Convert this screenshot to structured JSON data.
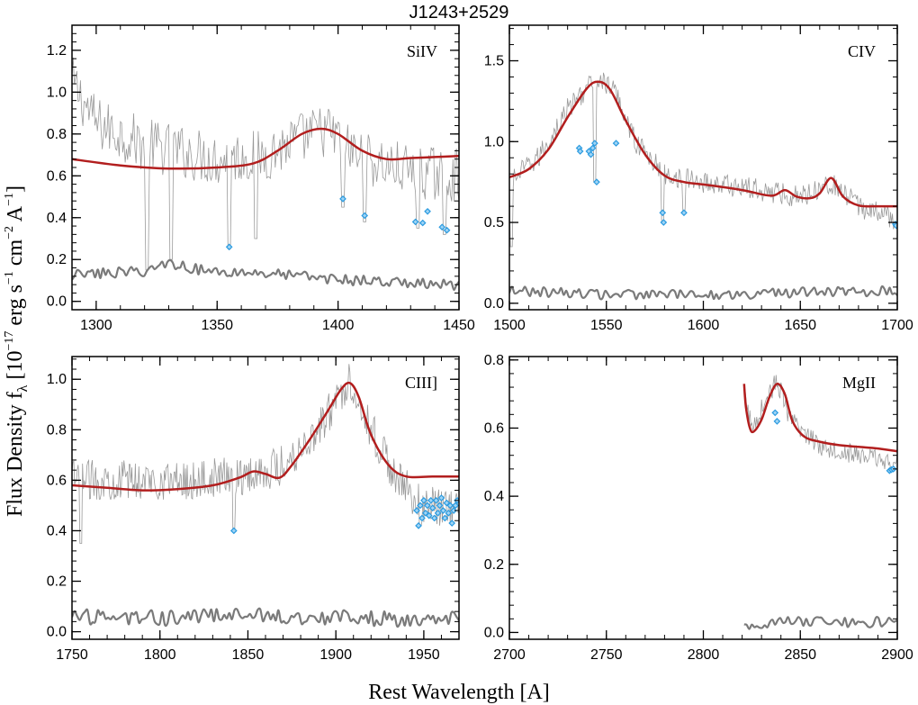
{
  "figure": {
    "title": "J1243+2529",
    "xlabel": "Rest Wavelength [A]",
    "ylabel_main": "Flux Density f",
    "ylabel_sub": "λ",
    "ylabel_units": "[10",
    "ylabel_exp1": "−17",
    "ylabel_units2": " erg s",
    "ylabel_exp2": "−1",
    "ylabel_units3": " cm",
    "ylabel_exp3": "−2",
    "ylabel_units4": " A",
    "ylabel_exp4": "−1",
    "ylabel_units5": "]"
  },
  "colors": {
    "model": "#b21e1e",
    "spectrum": "#9a9a9a",
    "error": "#7a7a7a",
    "masked": "#2b9be0"
  },
  "chart_data": [
    {
      "type": "line",
      "label": "SiIV",
      "xlim": [
        1290,
        1450
      ],
      "ylim": [
        -0.04,
        1.32
      ],
      "xticks": [
        1300,
        1350,
        1400,
        1450
      ],
      "yticks": [
        0.0,
        0.2,
        0.4,
        0.6,
        0.8,
        1.0,
        1.2
      ],
      "ytick_labels": [
        "0.0",
        "0.2",
        "0.4",
        "0.6",
        "0.8",
        "1.0",
        "1.2"
      ],
      "model": {
        "x": [
          1290,
          1310,
          1330,
          1350,
          1365,
          1375,
          1385,
          1393,
          1400,
          1410,
          1420,
          1430,
          1440,
          1450
        ],
        "y": [
          0.68,
          0.65,
          0.635,
          0.64,
          0.66,
          0.72,
          0.8,
          0.825,
          0.8,
          0.72,
          0.68,
          0.685,
          0.69,
          0.695
        ]
      },
      "spectrum": {
        "base": [
          [
            1290,
            1.05
          ],
          [
            1300,
            0.85
          ],
          [
            1320,
            0.75
          ],
          [
            1350,
            0.68
          ],
          [
            1370,
            0.7
          ],
          [
            1385,
            0.78
          ],
          [
            1395,
            0.82
          ],
          [
            1410,
            0.68
          ],
          [
            1430,
            0.62
          ],
          [
            1450,
            0.6
          ]
        ],
        "noise": 0.13,
        "dips": [
          [
            1321,
            0.15
          ],
          [
            1331,
            0.2
          ],
          [
            1355,
            0.25
          ],
          [
            1366,
            0.3
          ],
          [
            1402,
            0.45
          ],
          [
            1411,
            0.38
          ],
          [
            1433,
            0.35
          ],
          [
            1444,
            0.32
          ]
        ]
      },
      "error": {
        "base": [
          [
            1290,
            0.12
          ],
          [
            1320,
            0.14
          ],
          [
            1330,
            0.18
          ],
          [
            1345,
            0.14
          ],
          [
            1370,
            0.13
          ],
          [
            1400,
            0.1
          ],
          [
            1450,
            0.07
          ]
        ],
        "noise": 0.025
      },
      "masked": {
        "x": [
          1355,
          1402,
          1411,
          1432,
          1435,
          1437,
          1443,
          1445
        ],
        "y": [
          0.26,
          0.49,
          0.41,
          0.38,
          0.375,
          0.43,
          0.355,
          0.34
        ]
      }
    },
    {
      "type": "line",
      "label": "CIV",
      "xlim": [
        1500,
        1700
      ],
      "ylim": [
        -0.04,
        1.72
      ],
      "xticks": [
        1500,
        1550,
        1600,
        1650,
        1700
      ],
      "yticks": [
        0.0,
        0.5,
        1.0,
        1.5
      ],
      "ytick_labels": [
        "0.0",
        "0.5",
        "1.0",
        "1.5"
      ],
      "model": {
        "x": [
          1500,
          1510,
          1520,
          1530,
          1540,
          1546,
          1552,
          1560,
          1570,
          1580,
          1590,
          1600,
          1620,
          1635,
          1642,
          1648,
          1655,
          1660,
          1666,
          1672,
          1680,
          1690,
          1700
        ],
        "y": [
          0.78,
          0.83,
          0.95,
          1.15,
          1.33,
          1.37,
          1.32,
          1.13,
          0.92,
          0.79,
          0.75,
          0.735,
          0.7,
          0.665,
          0.7,
          0.66,
          0.65,
          0.68,
          0.775,
          0.66,
          0.605,
          0.6,
          0.6
        ]
      },
      "spectrum": {
        "base": [
          [
            1500,
            0.75
          ],
          [
            1515,
            0.9
          ],
          [
            1530,
            1.2
          ],
          [
            1545,
            1.4
          ],
          [
            1555,
            1.3
          ],
          [
            1565,
            1.0
          ],
          [
            1580,
            0.8
          ],
          [
            1600,
            0.75
          ],
          [
            1630,
            0.7
          ],
          [
            1650,
            0.66
          ],
          [
            1665,
            0.75
          ],
          [
            1680,
            0.6
          ],
          [
            1700,
            0.52
          ]
        ],
        "noise": 0.07,
        "dips": [
          [
            1501,
            0.35
          ],
          [
            1544,
            0.75
          ],
          [
            1579,
            0.5
          ],
          [
            1590,
            0.55
          ],
          [
            1699,
            0.48
          ]
        ]
      },
      "error": {
        "base": [
          [
            1500,
            0.07
          ],
          [
            1550,
            0.05
          ],
          [
            1600,
            0.045
          ],
          [
            1650,
            0.06
          ],
          [
            1700,
            0.07
          ]
        ],
        "noise": 0.03
      },
      "masked": {
        "x": [
          1536,
          1536.5,
          1541,
          1542,
          1543,
          1544,
          1545,
          1555,
          1579,
          1579.5,
          1590,
          1699,
          1699.5
        ],
        "y": [
          0.96,
          0.94,
          0.94,
          0.92,
          0.96,
          0.99,
          0.75,
          0.99,
          0.56,
          0.5,
          0.56,
          0.49,
          0.48
        ]
      }
    },
    {
      "type": "line",
      "label": "CIII]",
      "xlim": [
        1750,
        1970
      ],
      "ylim": [
        -0.03,
        1.09
      ],
      "xticks": [
        1750,
        1800,
        1850,
        1900,
        1950
      ],
      "yticks": [
        0.0,
        0.2,
        0.4,
        0.6,
        0.8,
        1.0
      ],
      "ytick_labels": [
        "0.0",
        "0.2",
        "0.4",
        "0.6",
        "0.8",
        "1.0"
      ],
      "model": {
        "x": [
          1750,
          1770,
          1790,
          1810,
          1830,
          1845,
          1853,
          1860,
          1868,
          1875,
          1885,
          1895,
          1903,
          1908,
          1913,
          1920,
          1930,
          1940,
          1955,
          1970
        ],
        "y": [
          0.58,
          0.57,
          0.56,
          0.565,
          0.58,
          0.61,
          0.635,
          0.625,
          0.61,
          0.66,
          0.76,
          0.87,
          0.96,
          0.985,
          0.93,
          0.78,
          0.66,
          0.615,
          0.615,
          0.615
        ]
      },
      "spectrum": {
        "base": [
          [
            1750,
            0.6
          ],
          [
            1780,
            0.6
          ],
          [
            1820,
            0.6
          ],
          [
            1850,
            0.62
          ],
          [
            1870,
            0.66
          ],
          [
            1890,
            0.8
          ],
          [
            1908,
            1.0
          ],
          [
            1920,
            0.8
          ],
          [
            1935,
            0.6
          ],
          [
            1950,
            0.5
          ],
          [
            1970,
            0.48
          ]
        ],
        "noise": 0.08,
        "dips": [
          [
            1755,
            0.35
          ],
          [
            1842,
            0.4
          ],
          [
            1948,
            0.42
          ]
        ]
      },
      "error": {
        "base": [
          [
            1750,
            0.05
          ],
          [
            1800,
            0.05
          ],
          [
            1850,
            0.06
          ],
          [
            1900,
            0.05
          ],
          [
            1970,
            0.04
          ]
        ],
        "noise": 0.03
      },
      "masked": {
        "x": [
          1842,
          1946,
          1947,
          1948,
          1949,
          1950,
          1951,
          1952,
          1953,
          1954,
          1955,
          1956,
          1957,
          1958,
          1959,
          1960,
          1961,
          1962,
          1963,
          1964,
          1965,
          1966,
          1967,
          1968,
          1969
        ],
        "y": [
          0.4,
          0.48,
          0.42,
          0.5,
          0.45,
          0.52,
          0.47,
          0.5,
          0.46,
          0.52,
          0.49,
          0.45,
          0.52,
          0.47,
          0.5,
          0.53,
          0.48,
          0.45,
          0.51,
          0.47,
          0.5,
          0.43,
          0.48,
          0.5,
          0.52
        ]
      }
    },
    {
      "type": "line",
      "label": "MgII",
      "xlim": [
        2700,
        2900
      ],
      "ylim": [
        -0.02,
        0.81
      ],
      "xticks": [
        2700,
        2750,
        2800,
        2850,
        2900
      ],
      "yticks": [
        0.0,
        0.2,
        0.4,
        0.6,
        0.8
      ],
      "ytick_labels": [
        "0.0",
        "0.2",
        "0.4",
        "0.6",
        "0.8"
      ],
      "model": {
        "x": [
          2821,
          2822,
          2824,
          2826,
          2830,
          2834,
          2838,
          2842,
          2846,
          2852,
          2860,
          2870,
          2880,
          2890,
          2900
        ],
        "y": [
          0.73,
          0.66,
          0.6,
          0.59,
          0.625,
          0.69,
          0.73,
          0.7,
          0.62,
          0.575,
          0.56,
          0.55,
          0.545,
          0.54,
          0.532
        ]
      },
      "spectrum": {
        "base": [
          [
            2821,
            0.7
          ],
          [
            2825,
            0.6
          ],
          [
            2832,
            0.68
          ],
          [
            2838,
            0.74
          ],
          [
            2845,
            0.62
          ],
          [
            2860,
            0.55
          ],
          [
            2880,
            0.52
          ],
          [
            2900,
            0.5
          ]
        ],
        "noise": 0.03,
        "dips": [
          [
            2897,
            0.48
          ]
        ]
      },
      "error": {
        "base": [
          [
            2821,
            0.02
          ],
          [
            2850,
            0.03
          ],
          [
            2900,
            0.025
          ]
        ],
        "noise": 0.015
      },
      "masked": {
        "x": [
          2837,
          2838,
          2896,
          2897,
          2898
        ],
        "y": [
          0.645,
          0.62,
          0.475,
          0.478,
          0.48
        ]
      }
    }
  ]
}
